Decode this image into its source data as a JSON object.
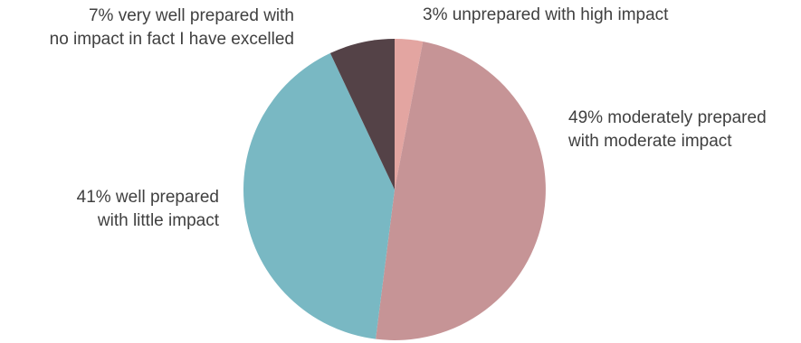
{
  "chart_data": {
    "type": "pie",
    "title": "",
    "slices": [
      {
        "value": 3,
        "color": "#E3A5A1",
        "label_lines": [
          "3% unprepared with high impact"
        ]
      },
      {
        "value": 49,
        "color": "#C69496",
        "label_lines": [
          "49% moderately prepared",
          "with moderate impact"
        ]
      },
      {
        "value": 41,
        "color": "#79B8C3",
        "label_lines": [
          "41% well prepared",
          "with little impact"
        ]
      },
      {
        "value": 7,
        "color": "#544247",
        "label_lines": [
          "7% very well prepared with",
          "no impact in fact I have excelled"
        ]
      }
    ],
    "start_angle_deg": 0,
    "direction": "clockwise",
    "legend": "none"
  }
}
